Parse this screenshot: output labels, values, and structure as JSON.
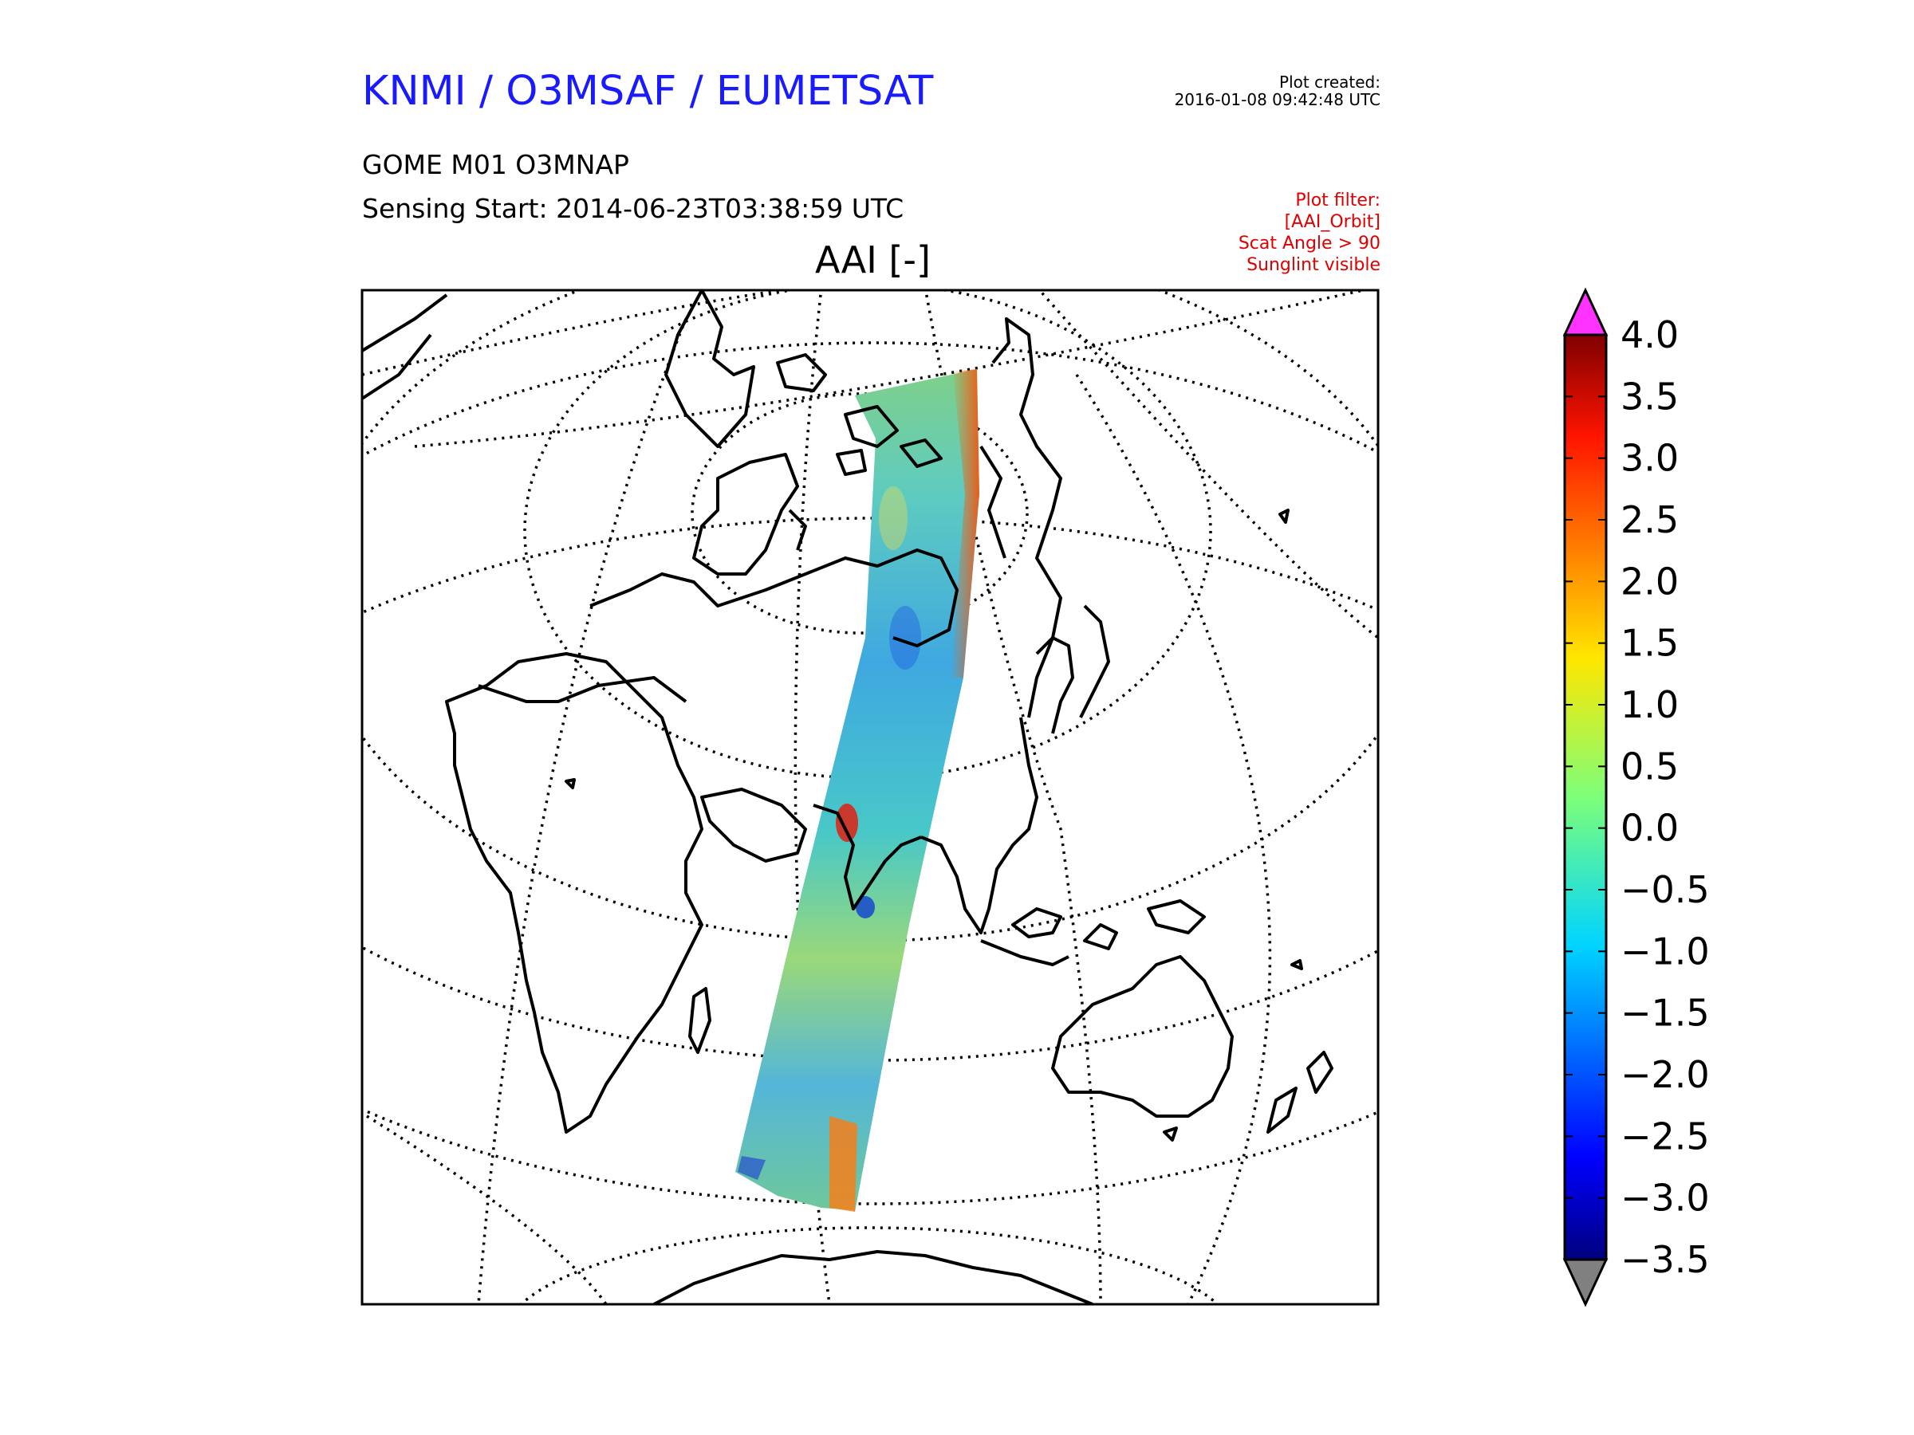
{
  "header": {
    "org_title": "KNMI / O3MSAF / EUMETSAT",
    "created_label": "Plot created:",
    "created_time": "2016-01-08 09:42:48 UTC",
    "product": "GOME M01 O3MNAP",
    "sensing_start": "Sensing Start: 2014-06-23T03:38:59 UTC",
    "filter_lines": [
      "Plot filter:",
      "[AAI_Orbit]",
      "Scat Angle > 90",
      "Sunglint visible"
    ]
  },
  "map": {
    "variable_title": "AAI [-]",
    "projection": "near-sided perspective, centered over Asia",
    "coastlines": "black",
    "graticule": "dotted",
    "swath": "single GOME orbit swath from the Arctic down across Asia and the Indian Ocean"
  },
  "colorbar": {
    "min": -3.5,
    "max": 4.0,
    "tick_labels": [
      "4.0",
      "3.5",
      "3.0",
      "2.5",
      "2.0",
      "1.5",
      "1.0",
      "0.5",
      "0.0",
      "−0.5",
      "−1.0",
      "−1.5",
      "−2.0",
      "−2.5",
      "−3.0",
      "−3.5"
    ],
    "colormap": "jet",
    "extend_max_color": "#ff33ff",
    "extend_min_color": "#808080"
  }
}
